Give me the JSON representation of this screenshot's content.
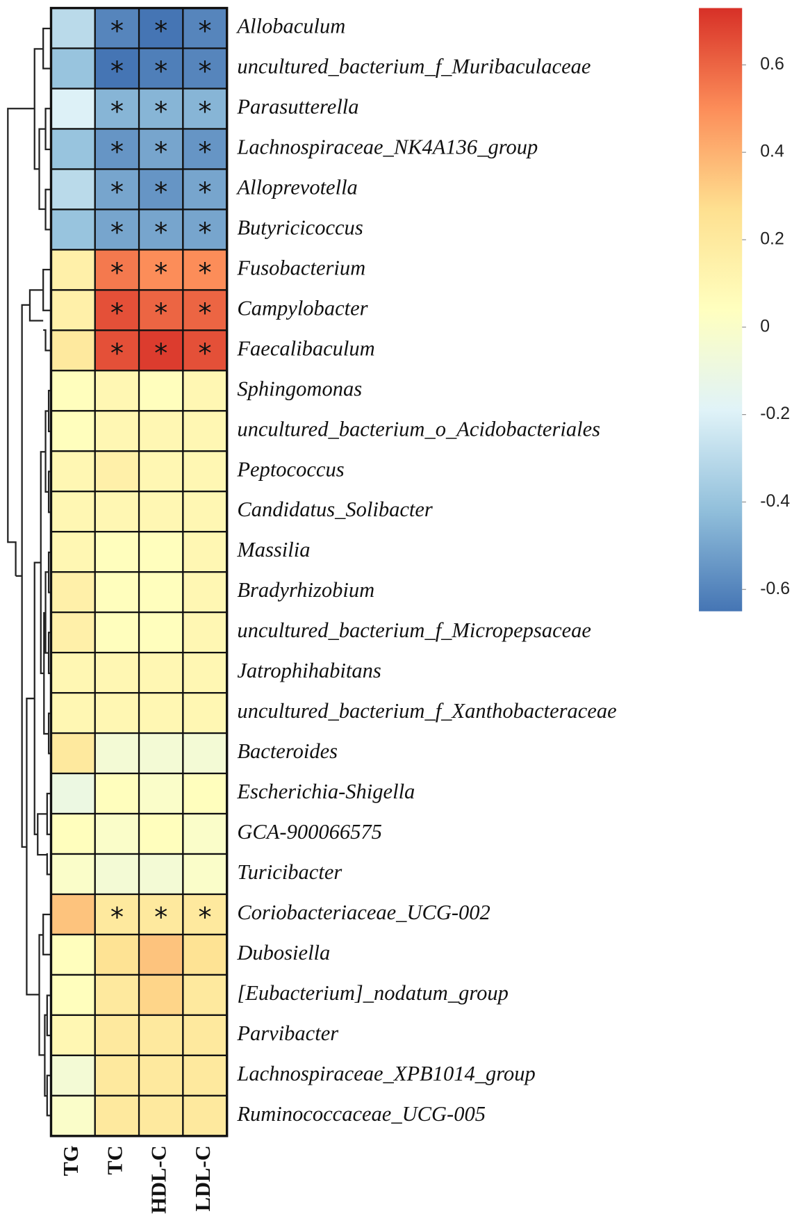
{
  "chart_data": {
    "type": "heatmap",
    "columns": [
      "TG",
      "TC",
      "HDL-C",
      "LDL-C"
    ],
    "rows": [
      "Allobaculum",
      "uncultured_bacterium_f_Muribaculaceae",
      "Parasutterella",
      "Lachnospiraceae_NK4A136_group",
      "Alloprevotella",
      "Butyricicoccus",
      "Fusobacterium",
      "Campylobacter",
      "Faecalibaculum",
      "Sphingomonas",
      "uncultured_bacterium_o_Acidobacteriales",
      "Peptococcus",
      "Candidatus_Solibacter",
      "Massilia",
      "Bradyrhizobium",
      "uncultured_bacterium_f_Micropepsaceae",
      "Jatrophihabitans",
      "uncultured_bacterium_f_Xanthobacteraceae",
      "Bacteroides",
      "Escherichia-Shigella",
      "GCA-900066575",
      "Turicibacter",
      "Coriobacteriaceae_UCG-002",
      "Dubosiella",
      "[Eubacterium]_nodatum_group",
      "Parvibacter",
      "Lachnospiraceae_XPB1014_group",
      "Ruminococcaceae_UCG-005"
    ],
    "values": [
      [
        -0.3,
        -0.6,
        -0.65,
        -0.6
      ],
      [
        -0.4,
        -0.65,
        -0.62,
        -0.6
      ],
      [
        -0.2,
        -0.45,
        -0.45,
        -0.45
      ],
      [
        -0.4,
        -0.55,
        -0.5,
        -0.55
      ],
      [
        -0.3,
        -0.5,
        -0.55,
        -0.5
      ],
      [
        -0.4,
        -0.5,
        -0.5,
        -0.5
      ],
      [
        0.15,
        0.55,
        0.5,
        0.5
      ],
      [
        0.15,
        0.65,
        0.6,
        0.6
      ],
      [
        0.2,
        0.65,
        0.7,
        0.65
      ],
      [
        0.05,
        0.1,
        0.05,
        0.1
      ],
      [
        0.05,
        0.1,
        0.1,
        0.1
      ],
      [
        0.1,
        0.15,
        0.1,
        0.1
      ],
      [
        0.1,
        0.1,
        0.1,
        0.1
      ],
      [
        0.1,
        0.05,
        0.05,
        0.1
      ],
      [
        0.15,
        0.05,
        0.05,
        0.1
      ],
      [
        0.15,
        0.05,
        0.05,
        0.1
      ],
      [
        0.1,
        0.1,
        0.1,
        0.1
      ],
      [
        0.1,
        0.1,
        0.1,
        0.1
      ],
      [
        0.2,
        -0.05,
        -0.05,
        -0.05
      ],
      [
        -0.1,
        0.05,
        0,
        0.05
      ],
      [
        0.05,
        0,
        0.05,
        0
      ],
      [
        0,
        -0.05,
        -0.05,
        0
      ],
      [
        0.35,
        0.2,
        0.2,
        0.2
      ],
      [
        0.05,
        0.25,
        0.35,
        0.25
      ],
      [
        0.05,
        0.2,
        0.3,
        0.2
      ],
      [
        0.1,
        0.2,
        0.2,
        0.2
      ],
      [
        -0.05,
        0.2,
        0.2,
        0.2
      ],
      [
        0,
        0.2,
        0.2,
        0.2
      ]
    ],
    "significant": [
      [
        false,
        true,
        true,
        true
      ],
      [
        false,
        true,
        true,
        true
      ],
      [
        false,
        true,
        true,
        true
      ],
      [
        false,
        true,
        true,
        true
      ],
      [
        false,
        true,
        true,
        true
      ],
      [
        false,
        true,
        true,
        true
      ],
      [
        false,
        true,
        true,
        true
      ],
      [
        false,
        true,
        true,
        true
      ],
      [
        false,
        true,
        true,
        true
      ],
      [
        false,
        false,
        false,
        false
      ],
      [
        false,
        false,
        false,
        false
      ],
      [
        false,
        false,
        false,
        false
      ],
      [
        false,
        false,
        false,
        false
      ],
      [
        false,
        false,
        false,
        false
      ],
      [
        false,
        false,
        false,
        false
      ],
      [
        false,
        false,
        false,
        false
      ],
      [
        false,
        false,
        false,
        false
      ],
      [
        false,
        false,
        false,
        false
      ],
      [
        false,
        false,
        false,
        false
      ],
      [
        false,
        false,
        false,
        false
      ],
      [
        false,
        false,
        false,
        false
      ],
      [
        false,
        false,
        false,
        false
      ],
      [
        false,
        true,
        true,
        true
      ],
      [
        false,
        false,
        false,
        false
      ],
      [
        false,
        false,
        false,
        false
      ],
      [
        false,
        false,
        false,
        false
      ],
      [
        false,
        false,
        false,
        false
      ],
      [
        false,
        false,
        false,
        false
      ]
    ],
    "significance_label": "*",
    "colorscale": [
      "#4575b4",
      "#91bfdb",
      "#e0f3f8",
      "#ffffbf",
      "#fee090",
      "#fc8d59",
      "#d73027"
    ],
    "zlim": [
      -0.65,
      0.73
    ],
    "zticks": [
      0.6,
      0.4,
      0.2,
      0,
      -0.2,
      -0.4,
      -0.6
    ]
  }
}
